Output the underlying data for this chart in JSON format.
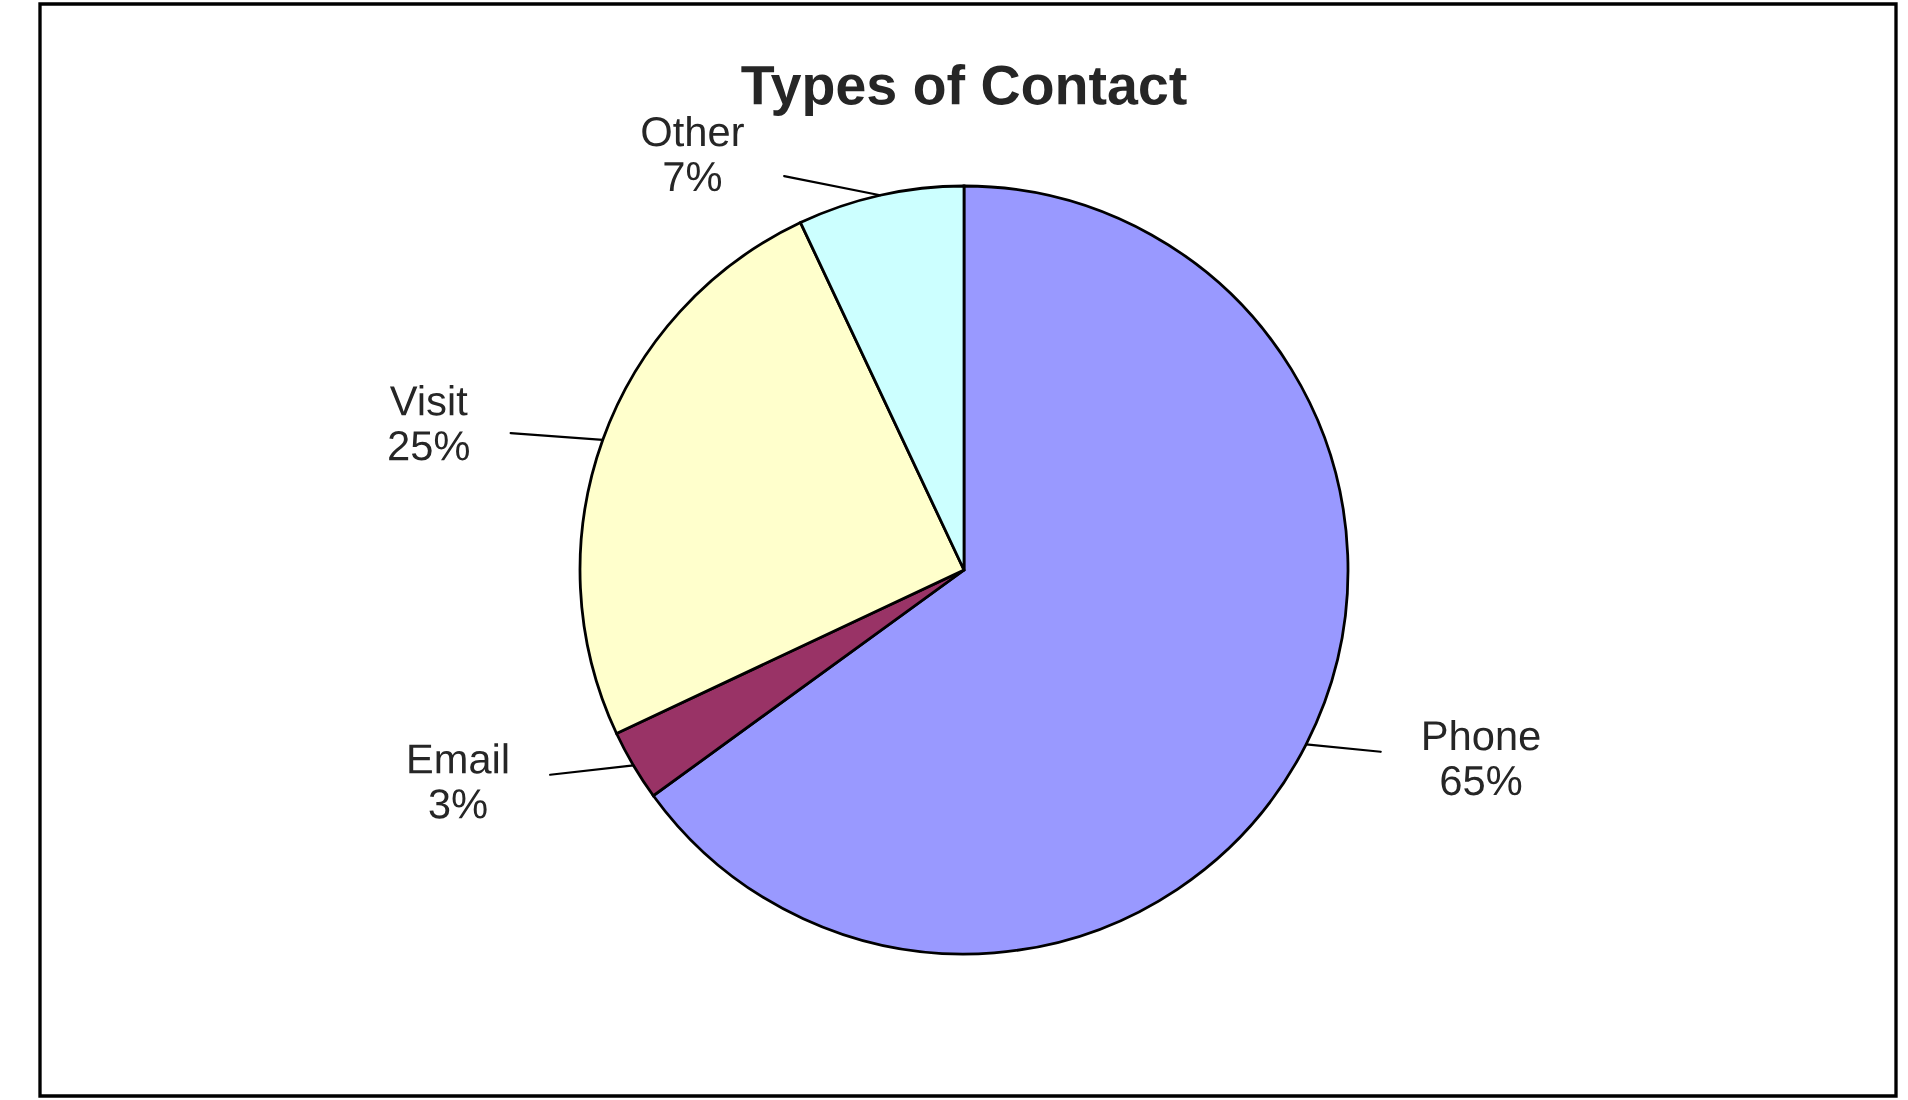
{
  "chart_data": {
    "type": "pie",
    "title": "Types of Contact",
    "categories": [
      "Phone",
      "Email",
      "Visit",
      "Other"
    ],
    "values": [
      65,
      3,
      25,
      7
    ],
    "value_labels": [
      "65%",
      "3%",
      "25%",
      "7%"
    ],
    "colors": [
      "#9999ff",
      "#993366",
      "#ffffcc",
      "#ccffff"
    ],
    "legend": false
  }
}
